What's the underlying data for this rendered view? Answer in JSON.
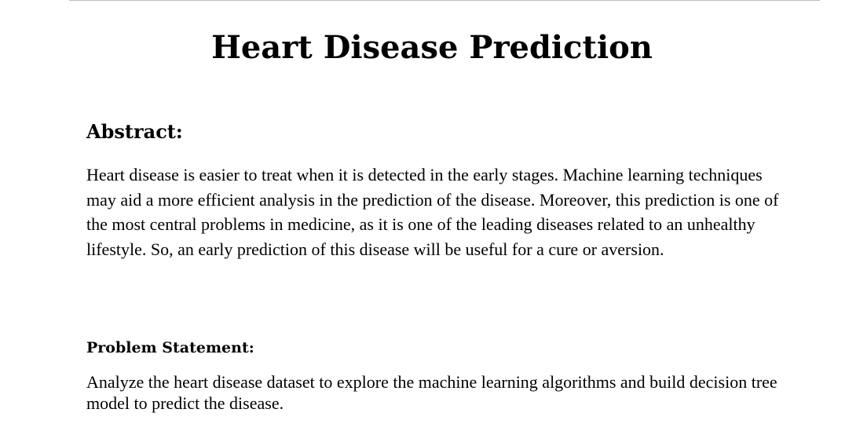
{
  "document": {
    "title": "Heart Disease Prediction",
    "abstract": {
      "heading": "Abstract:",
      "text": "Heart disease is easier to treat when it is detected in the early stages. Machine learning techniques may aid a more efficient analysis in the prediction of the disease. Moreover, this prediction is one of the most central problems in medicine, as it is one of the leading diseases related to an unhealthy lifestyle. So, an early prediction of this disease will be useful for a cure or aversion."
    },
    "problem_statement": {
      "heading": "Problem Statement:",
      "text": "Analyze the heart disease dataset to explore the machine learning algorithms and build decision tree model to predict the disease."
    }
  }
}
